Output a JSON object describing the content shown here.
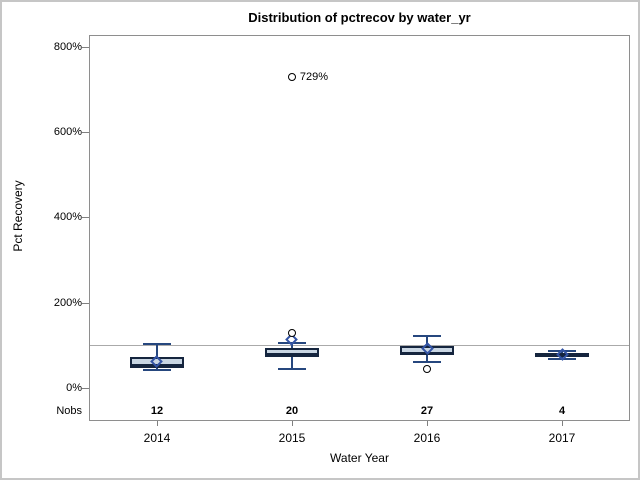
{
  "title": "Distribution of pctrecov by water_yr",
  "y_axis": {
    "label": "Pct Recovery"
  },
  "x_axis": {
    "label": "Water Year"
  },
  "nobs_row": {
    "label": "Nobs"
  },
  "colors": {
    "box_fill": "#c9d6e3",
    "box_border": "#15253e",
    "whisker": "#26477e",
    "mean_marker": "#3354a5",
    "outlier": "#000000",
    "reference_line": "#aaaaaa",
    "frame": "#8e8e8e"
  },
  "chart_data": {
    "type": "boxplot",
    "title": "Distribution of pctrecov by water_yr",
    "xlabel": "Water Year",
    "ylabel": "Pct Recovery",
    "ylim": [
      0,
      800
    ],
    "yticks": [
      0,
      200,
      400,
      600,
      800
    ],
    "ytick_labels": [
      "0%",
      "200%",
      "400%",
      "600%",
      "800%"
    ],
    "grid": false,
    "reference_line": 100,
    "categories": [
      "2014",
      "2015",
      "2016",
      "2017"
    ],
    "nobs": [
      "12",
      "20",
      "27",
      "4"
    ],
    "series": [
      {
        "category": "2014",
        "whisker_low": 43,
        "q1": 48,
        "median": 55,
        "q3": 73,
        "whisker_high": 102,
        "mean": 63,
        "outliers": []
      },
      {
        "category": "2015",
        "whisker_low": 44,
        "q1": 73,
        "median": 79,
        "q3": 94,
        "whisker_high": 105,
        "mean": 114,
        "outliers": [
          {
            "value": 130,
            "label": ""
          },
          {
            "value": 729,
            "label": "729%"
          }
        ]
      },
      {
        "category": "2016",
        "whisker_low": 60,
        "q1": 78,
        "median": 82,
        "q3": 99,
        "whisker_high": 122,
        "mean": 92,
        "outliers": [
          {
            "value": 45,
            "label": ""
          }
        ]
      },
      {
        "category": "2017",
        "whisker_low": 68,
        "q1": 72,
        "median": 78,
        "q3": 82,
        "whisker_high": 86,
        "mean": 78,
        "outliers": []
      }
    ]
  }
}
